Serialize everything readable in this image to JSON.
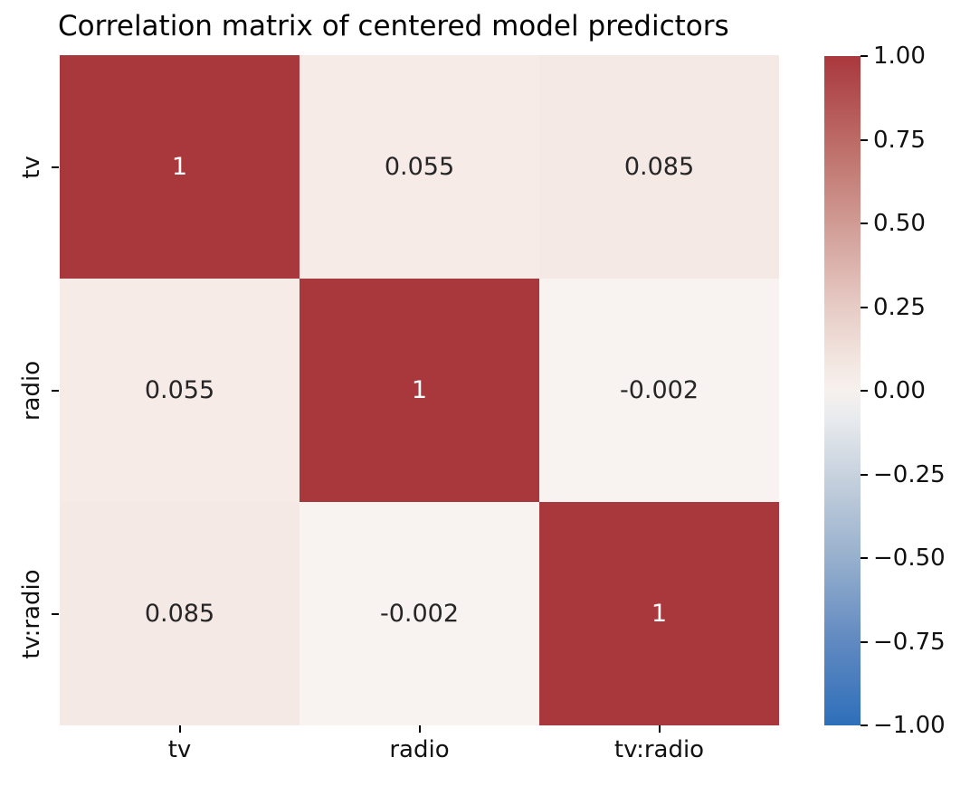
{
  "title": "Correlation matrix of centered model predictors",
  "chart_data": {
    "type": "heatmap",
    "title": "Correlation matrix of centered model predictors",
    "categories": [
      "tv",
      "radio",
      "tv:radio"
    ],
    "x_ticklabels": [
      "tv",
      "radio",
      "tv:radio"
    ],
    "y_ticklabels": [
      "tv",
      "radio",
      "tv:radio"
    ],
    "matrix": [
      [
        1,
        0.055,
        0.085
      ],
      [
        0.055,
        1,
        -0.002
      ],
      [
        0.085,
        -0.002,
        1
      ]
    ],
    "annotations": [
      [
        "1",
        "0.055",
        "0.085"
      ],
      [
        "0.055",
        "1",
        "-0.002"
      ],
      [
        "0.085",
        "-0.002",
        "1"
      ]
    ],
    "vmin": -1,
    "vmax": 1,
    "colormap": "vlag (blue-white-red diverging)",
    "colorbar_ticklabels": [
      "1.00",
      "0.75",
      "0.50",
      "0.25",
      "0.00",
      "−0.25",
      "−0.50",
      "−0.75",
      "−1.00"
    ],
    "cell_colors": [
      [
        "#a9383d",
        "#f7ebe8",
        "#f5e9e6"
      ],
      [
        "#f7ebe8",
        "#a9383d",
        "#f8f2f0"
      ],
      [
        "#f5e9e6",
        "#f8f2f0",
        "#a9383d"
      ]
    ],
    "annotation_colors": [
      [
        "#ffffff",
        "#262626",
        "#262626"
      ],
      [
        "#262626",
        "#ffffff",
        "#262626"
      ],
      [
        "#262626",
        "#262626",
        "#ffffff"
      ]
    ],
    "colorbar_gradient": [
      {
        "pos": 0,
        "color": "#a9383d"
      },
      {
        "pos": 12.5,
        "color": "#bc6a65"
      },
      {
        "pos": 25,
        "color": "#d09b94"
      },
      {
        "pos": 37.5,
        "color": "#e7cbc5"
      },
      {
        "pos": 46,
        "color": "#f3e7e2"
      },
      {
        "pos": 50,
        "color": "#f6f1ee"
      },
      {
        "pos": 54,
        "color": "#e9ebee"
      },
      {
        "pos": 62.5,
        "color": "#c8d2de"
      },
      {
        "pos": 75,
        "color": "#97b0cd"
      },
      {
        "pos": 87.5,
        "color": "#6089c1"
      },
      {
        "pos": 100,
        "color": "#2e6fba"
      }
    ]
  }
}
